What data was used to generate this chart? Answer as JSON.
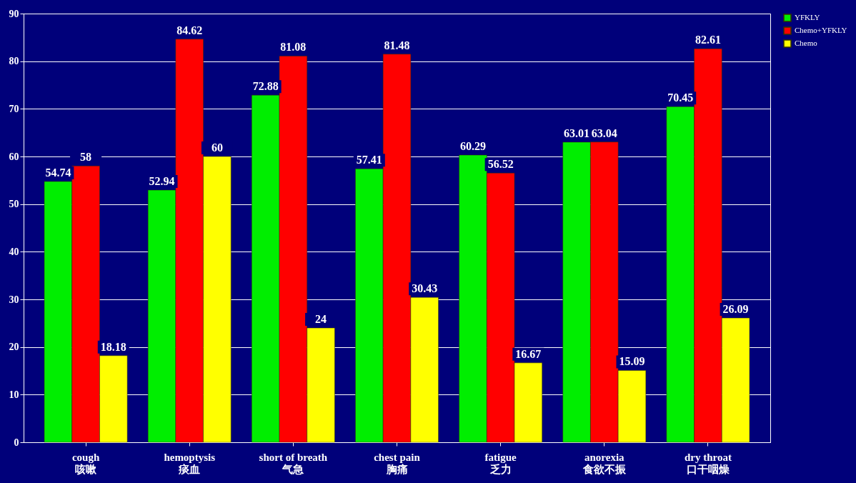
{
  "chart_data": {
    "type": "bar",
    "categories": [
      "cough\n咳嗽",
      "hemoptysis\n痰血",
      "short of breath\n气急",
      "chest pain\n胸痛",
      "fatigue\n乏力",
      "anorexia\n食欲不振",
      "dry throat\n口干咽燥"
    ],
    "series": [
      {
        "name": "YFKLY",
        "color": "#00ee00",
        "values": [
          54.74,
          52.94,
          72.88,
          57.41,
          60.29,
          63.01,
          70.45
        ]
      },
      {
        "name": "Chemo+YFKLY",
        "color": "#ff0000",
        "values": [
          58,
          84.62,
          81.08,
          81.48,
          56.52,
          63.04,
          82.61
        ]
      },
      {
        "name": "Chemo",
        "color": "#ffff00",
        "values": [
          18.18,
          60,
          24,
          30.43,
          16.67,
          15.09,
          26.09
        ]
      }
    ],
    "ylim": [
      0,
      90
    ],
    "yticks": [
      0,
      10,
      20,
      30,
      40,
      50,
      60,
      70,
      80,
      90
    ],
    "grid": "y",
    "legend": "right",
    "data_labels": true
  }
}
